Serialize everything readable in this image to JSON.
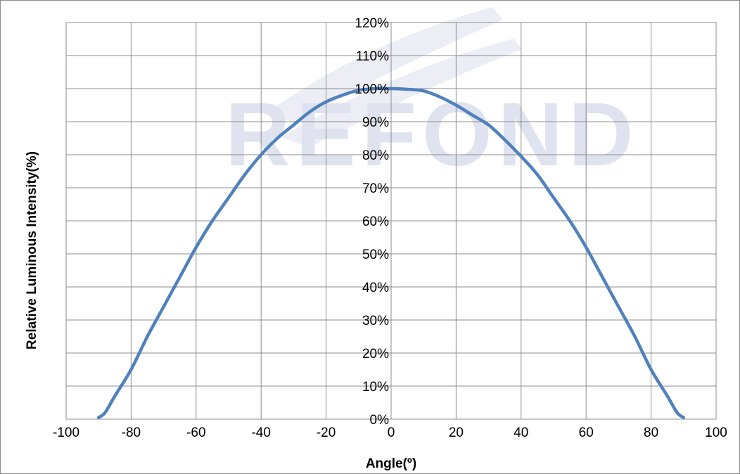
{
  "chart_data": {
    "type": "line",
    "title": "",
    "xlabel": "Angle(º)",
    "ylabel": "Relative Luminous Intensity(%)",
    "xlim": [
      -100,
      100
    ],
    "ylim": [
      0,
      120
    ],
    "x_ticks": [
      -100,
      -80,
      -60,
      -40,
      -20,
      0,
      20,
      40,
      60,
      80,
      100
    ],
    "x_tick_labels": [
      "-100",
      "-80",
      "-60",
      "-40",
      "-20",
      "0",
      "20",
      "40",
      "60",
      "80",
      "100"
    ],
    "y_ticks": [
      0,
      10,
      20,
      30,
      40,
      50,
      60,
      70,
      80,
      90,
      100,
      110,
      120
    ],
    "y_tick_labels": [
      "0%",
      "10%",
      "20%",
      "30%",
      "40%",
      "50%",
      "60%",
      "70%",
      "80%",
      "90%",
      "100%",
      "110%",
      "120%"
    ],
    "grid": true,
    "legend": "none",
    "series": [
      {
        "color": "#4f81bd",
        "x": [
          -90,
          -88,
          -85,
          -80,
          -75,
          -70,
          -65,
          -60,
          -55,
          -50,
          -45,
          -40,
          -35,
          -30,
          -25,
          -20,
          -15,
          -10,
          -5,
          0,
          5,
          10,
          15,
          20,
          25,
          30,
          35,
          40,
          45,
          50,
          55,
          60,
          65,
          70,
          75,
          80,
          85,
          88,
          90
        ],
        "y": [
          0.5,
          2,
          7,
          15,
          25,
          34,
          43,
          52,
          60,
          67,
          74,
          80,
          85,
          89,
          93,
          96,
          98,
          99.5,
          100,
          100,
          99.8,
          99.3,
          97.5,
          95,
          92,
          89,
          84.5,
          79.5,
          74,
          67,
          60,
          52,
          43,
          34,
          25,
          15,
          7,
          2,
          0.5
        ]
      }
    ]
  },
  "watermark": {
    "text": "REFOND",
    "color": "#dfe2ef"
  }
}
